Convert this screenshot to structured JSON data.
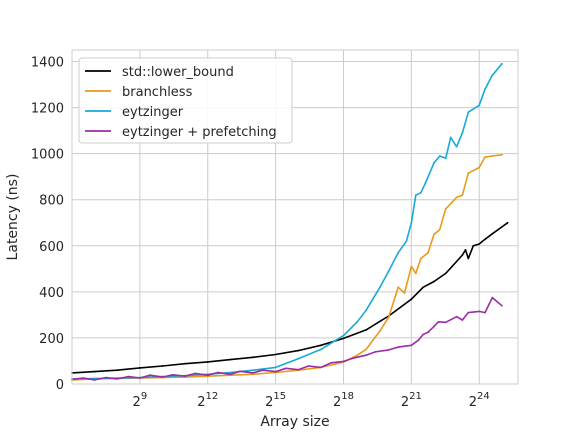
{
  "chart_data": {
    "type": "line",
    "xlabel": "Array size",
    "ylabel": "Latency (ns)",
    "x_scale": "log2",
    "xlim": [
      64,
      55000000
    ],
    "ylim": [
      0,
      1450
    ],
    "x_ticks": [
      {
        "value": 512,
        "base": "2",
        "exp": "9"
      },
      {
        "value": 4096,
        "base": "2",
        "exp": "12"
      },
      {
        "value": 32768,
        "base": "2",
        "exp": "15"
      },
      {
        "value": 262144,
        "base": "2",
        "exp": "18"
      },
      {
        "value": 2097152,
        "base": "2",
        "exp": "21"
      },
      {
        "value": 16777216,
        "base": "2",
        "exp": "24"
      }
    ],
    "y_ticks": [
      {
        "value": 0,
        "label": "0"
      },
      {
        "value": 200,
        "label": "200"
      },
      {
        "value": 400,
        "label": "400"
      },
      {
        "value": 600,
        "label": "600"
      },
      {
        "value": 800,
        "label": "800"
      },
      {
        "value": 1000,
        "label": "1000"
      },
      {
        "value": 1200,
        "label": "1200"
      },
      {
        "value": 1400,
        "label": "1400"
      }
    ],
    "grid": true,
    "legend_position": "top-left",
    "series": [
      {
        "name": "std::lower_bound",
        "color": "#000000",
        "points": [
          [
            64,
            48
          ],
          [
            128,
            54
          ],
          [
            256,
            60
          ],
          [
            512,
            70
          ],
          [
            1024,
            78
          ],
          [
            2048,
            88
          ],
          [
            4096,
            96
          ],
          [
            8192,
            106
          ],
          [
            16384,
            116
          ],
          [
            32768,
            128
          ],
          [
            65536,
            145
          ],
          [
            131072,
            168
          ],
          [
            262144,
            198
          ],
          [
            524288,
            235
          ],
          [
            1048576,
            295
          ],
          [
            2097152,
            368
          ],
          [
            3000000,
            420
          ],
          [
            4194304,
            445
          ],
          [
            6000000,
            480
          ],
          [
            8388608,
            532
          ],
          [
            10000000,
            560
          ],
          [
            11000000,
            582
          ],
          [
            12000000,
            545
          ],
          [
            14000000,
            600
          ],
          [
            16777216,
            608
          ],
          [
            20000000,
            628
          ],
          [
            25000000,
            652
          ],
          [
            33554432,
            682
          ],
          [
            40000000,
            700
          ]
        ]
      },
      {
        "name": "branchless",
        "color": "#e69c1a",
        "points": [
          [
            64,
            18
          ],
          [
            128,
            22
          ],
          [
            256,
            24
          ],
          [
            512,
            26
          ],
          [
            1024,
            28
          ],
          [
            2048,
            30
          ],
          [
            4096,
            34
          ],
          [
            8192,
            38
          ],
          [
            16384,
            42
          ],
          [
            32768,
            50
          ],
          [
            65536,
            60
          ],
          [
            131072,
            72
          ],
          [
            262144,
            95
          ],
          [
            400000,
            125
          ],
          [
            524288,
            150
          ],
          [
            800000,
            230
          ],
          [
            1048576,
            290
          ],
          [
            1400000,
            420
          ],
          [
            1700000,
            395
          ],
          [
            2097152,
            510
          ],
          [
            2400000,
            480
          ],
          [
            2800000,
            545
          ],
          [
            3500000,
            570
          ],
          [
            4194304,
            650
          ],
          [
            5000000,
            670
          ],
          [
            6000000,
            760
          ],
          [
            8388608,
            810
          ],
          [
            10000000,
            820
          ],
          [
            12000000,
            915
          ],
          [
            16777216,
            940
          ],
          [
            20000000,
            985
          ],
          [
            25000000,
            990
          ],
          [
            33554432,
            995
          ]
        ]
      },
      {
        "name": "eytzinger",
        "color": "#17aad8",
        "points": [
          [
            64,
            22
          ],
          [
            128,
            24
          ],
          [
            256,
            26
          ],
          [
            512,
            28
          ],
          [
            1024,
            32
          ],
          [
            2048,
            36
          ],
          [
            4096,
            42
          ],
          [
            8192,
            50
          ],
          [
            16384,
            60
          ],
          [
            32768,
            72
          ],
          [
            65536,
            110
          ],
          [
            131072,
            150
          ],
          [
            262144,
            210
          ],
          [
            400000,
            270
          ],
          [
            524288,
            320
          ],
          [
            800000,
            420
          ],
          [
            1048576,
            490
          ],
          [
            1400000,
            570
          ],
          [
            1800000,
            620
          ],
          [
            2097152,
            700
          ],
          [
            2400000,
            820
          ],
          [
            2800000,
            830
          ],
          [
            3200000,
            870
          ],
          [
            4194304,
            960
          ],
          [
            5000000,
            990
          ],
          [
            6000000,
            980
          ],
          [
            7000000,
            1070
          ],
          [
            8388608,
            1030
          ],
          [
            10000000,
            1090
          ],
          [
            12000000,
            1180
          ],
          [
            16777216,
            1210
          ],
          [
            20000000,
            1280
          ],
          [
            25000000,
            1340
          ],
          [
            33554432,
            1390
          ]
        ]
      },
      {
        "name": "eytzinger + prefetching",
        "color": "#9b2ca8",
        "points": [
          [
            64,
            20
          ],
          [
            90,
            26
          ],
          [
            128,
            18
          ],
          [
            180,
            28
          ],
          [
            256,
            22
          ],
          [
            360,
            32
          ],
          [
            512,
            26
          ],
          [
            700,
            38
          ],
          [
            1024,
            30
          ],
          [
            1400,
            40
          ],
          [
            2048,
            34
          ],
          [
            2800,
            46
          ],
          [
            4096,
            38
          ],
          [
            5600,
            50
          ],
          [
            8192,
            42
          ],
          [
            11000,
            55
          ],
          [
            16384,
            48
          ],
          [
            22000,
            60
          ],
          [
            32768,
            54
          ],
          [
            45000,
            68
          ],
          [
            65536,
            62
          ],
          [
            90000,
            78
          ],
          [
            131072,
            72
          ],
          [
            180000,
            92
          ],
          [
            262144,
            98
          ],
          [
            350000,
            112
          ],
          [
            524288,
            125
          ],
          [
            700000,
            140
          ],
          [
            1048576,
            148
          ],
          [
            1400000,
            160
          ],
          [
            2097152,
            168
          ],
          [
            2600000,
            190
          ],
          [
            3000000,
            215
          ],
          [
            3500000,
            225
          ],
          [
            4194304,
            250
          ],
          [
            4800000,
            270
          ],
          [
            6000000,
            268
          ],
          [
            8388608,
            292
          ],
          [
            10000000,
            278
          ],
          [
            12000000,
            310
          ],
          [
            16777216,
            315
          ],
          [
            20000000,
            310
          ],
          [
            25000000,
            375
          ],
          [
            33554432,
            340
          ]
        ]
      }
    ]
  }
}
